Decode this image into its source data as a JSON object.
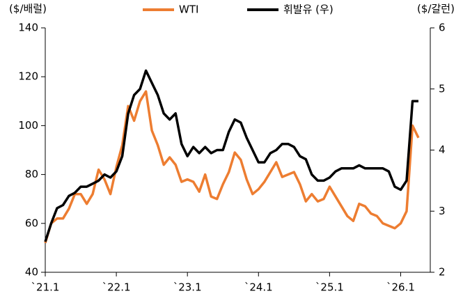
{
  "chart_data": {
    "type": "line",
    "y_label": "($/배럴)",
    "y2_label": "($/갈런)",
    "x": [
      "2021-01",
      "2021-02",
      "2021-03",
      "2021-04",
      "2021-05",
      "2021-06",
      "2021-07",
      "2021-08",
      "2021-09",
      "2021-10",
      "2021-11",
      "2021-12",
      "2022-01",
      "2022-02",
      "2022-03",
      "2022-04",
      "2022-05",
      "2022-06",
      "2022-07",
      "2022-08",
      "2022-09",
      "2022-10",
      "2022-11",
      "2022-12",
      "2023-01",
      "2023-02",
      "2023-03",
      "2023-04",
      "2023-05",
      "2023-06",
      "2023-07",
      "2023-08",
      "2023-09",
      "2023-10",
      "2023-11",
      "2023-12",
      "2024-01",
      "2024-02",
      "2024-03",
      "2024-04",
      "2024-05",
      "2024-06",
      "2024-07",
      "2024-08",
      "2024-09",
      "2024-10",
      "2024-11",
      "2024-12",
      "2025-01",
      "2025-02",
      "2025-03",
      "2025-04",
      "2025-05",
      "2025-06",
      "2025-07",
      "2025-08",
      "2025-09",
      "2025-10",
      "2025-11",
      "2025-12",
      "2026-01",
      "2026-02",
      "2026-03",
      "2026-04"
    ],
    "series": [
      {
        "name": "WTI",
        "color": "#ed7d31",
        "axis": "y",
        "values": [
          52,
          60,
          62,
          62,
          66,
          72,
          72,
          68,
          72,
          82,
          78,
          72,
          83,
          92,
          108,
          102,
          110,
          114,
          98,
          92,
          84,
          87,
          84,
          77,
          78,
          77,
          73,
          80,
          71,
          70,
          76,
          81,
          89,
          86,
          78,
          72,
          74,
          77,
          81,
          85,
          79,
          80,
          81,
          76,
          69,
          72,
          69,
          70,
          75,
          71,
          67,
          63,
          61,
          68,
          67,
          64,
          63,
          60,
          59,
          58,
          60,
          65,
          100,
          95
        ]
      },
      {
        "name": "휘발유 (우)",
        "color": "#000000",
        "axis": "y2",
        "values": [
          2.5,
          2.8,
          3.05,
          3.1,
          3.25,
          3.3,
          3.4,
          3.4,
          3.45,
          3.5,
          3.6,
          3.55,
          3.65,
          3.9,
          4.6,
          4.9,
          5.0,
          5.3,
          5.1,
          4.9,
          4.6,
          4.5,
          4.6,
          4.1,
          3.9,
          4.05,
          3.95,
          4.05,
          3.95,
          4.0,
          4.0,
          4.3,
          4.5,
          4.45,
          4.2,
          4.0,
          3.8,
          3.8,
          3.95,
          4.0,
          4.1,
          4.1,
          4.05,
          3.9,
          3.85,
          3.6,
          3.5,
          3.5,
          3.55,
          3.65,
          3.7,
          3.7,
          3.7,
          3.75,
          3.7,
          3.7,
          3.7,
          3.7,
          3.65,
          3.4,
          3.35,
          3.5,
          4.8,
          4.8
        ]
      }
    ],
    "xlim": [
      "2021-01",
      "2026-06"
    ],
    "xticks": [
      {
        "value": "2021-01",
        "label": "`21.1"
      },
      {
        "value": "2022-01",
        "label": "`22.1"
      },
      {
        "value": "2023-01",
        "label": "`23.1"
      },
      {
        "value": "2024-01",
        "label": "`24.1"
      },
      {
        "value": "2025-01",
        "label": "`25.1"
      },
      {
        "value": "2026-01",
        "label": "`26.1"
      }
    ],
    "ylim": [
      40,
      140
    ],
    "yticks": [
      40,
      60,
      80,
      100,
      120,
      140
    ],
    "y2lim": [
      2,
      6
    ],
    "y2ticks": [
      2,
      3,
      4,
      5,
      6
    ]
  }
}
